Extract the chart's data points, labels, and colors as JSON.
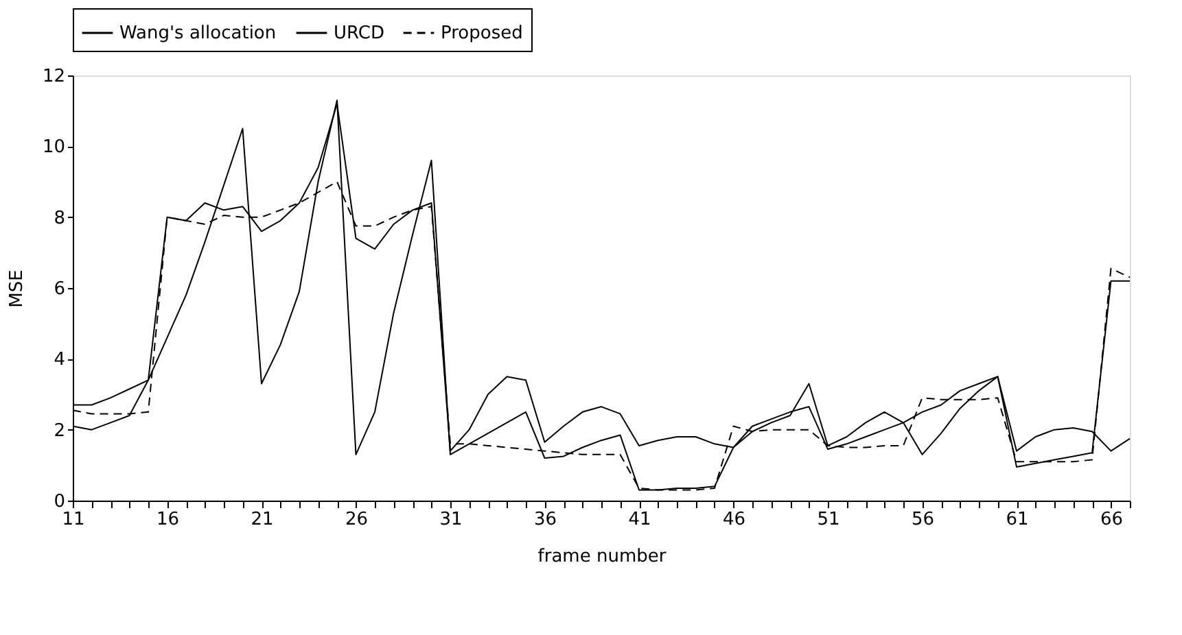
{
  "chart_data": {
    "type": "line",
    "xlabel": "frame number",
    "ylabel": "MSE",
    "x": [
      11,
      12,
      13,
      14,
      15,
      16,
      17,
      18,
      19,
      20,
      21,
      22,
      23,
      24,
      25,
      26,
      27,
      28,
      29,
      30,
      31,
      32,
      33,
      34,
      35,
      36,
      37,
      38,
      39,
      40,
      41,
      42,
      43,
      44,
      45,
      46,
      47,
      48,
      49,
      50,
      51,
      52,
      53,
      54,
      55,
      56,
      57,
      58,
      59,
      60,
      61,
      62,
      63,
      64,
      65,
      66,
      67
    ],
    "series": [
      {
        "name": "Wang's allocation",
        "color": "#000000",
        "line_style": "solid",
        "values": [
          2.1,
          2.0,
          2.2,
          2.4,
          3.4,
          4.6,
          5.8,
          7.3,
          8.9,
          10.5,
          3.3,
          4.4,
          5.9,
          9.0,
          11.3,
          1.3,
          2.5,
          5.3,
          7.5,
          9.6,
          1.3,
          1.6,
          1.9,
          2.2,
          2.5,
          1.2,
          1.25,
          1.5,
          1.7,
          1.85,
          0.3,
          0.3,
          0.35,
          0.35,
          0.4,
          1.5,
          2.1,
          2.3,
          2.5,
          2.65,
          1.45,
          1.6,
          1.8,
          2.0,
          2.2,
          2.5,
          2.7,
          3.1,
          3.3,
          3.5,
          0.95,
          1.05,
          1.15,
          1.25,
          1.35,
          6.2,
          6.2
        ]
      },
      {
        "name": "URCD",
        "color": "#000000",
        "line_style": "solid",
        "values": [
          2.7,
          2.7,
          2.9,
          3.15,
          3.4,
          8.0,
          7.9,
          8.4,
          8.2,
          8.3,
          7.6,
          7.9,
          8.4,
          9.4,
          11.2,
          7.4,
          7.1,
          7.8,
          8.2,
          8.4,
          1.4,
          2.0,
          3.0,
          3.5,
          3.4,
          1.65,
          2.1,
          2.5,
          2.65,
          2.45,
          1.55,
          1.7,
          1.8,
          1.8,
          1.6,
          1.5,
          1.95,
          2.2,
          2.4,
          3.3,
          1.55,
          1.8,
          2.2,
          2.5,
          2.2,
          1.3,
          1.9,
          2.6,
          3.1,
          3.5,
          1.4,
          1.8,
          2.0,
          2.05,
          1.95,
          1.4,
          1.75
        ]
      },
      {
        "name": "Proposed",
        "color": "#000000",
        "line_style": "dashed",
        "values": [
          2.55,
          2.45,
          2.45,
          2.45,
          2.5,
          8.0,
          7.9,
          7.8,
          8.05,
          8.0,
          8.0,
          8.2,
          8.4,
          8.7,
          9.0,
          7.75,
          7.75,
          8.0,
          8.2,
          8.3,
          1.6,
          1.6,
          1.55,
          1.5,
          1.45,
          1.4,
          1.35,
          1.3,
          1.3,
          1.3,
          0.35,
          0.3,
          0.3,
          0.3,
          0.35,
          2.1,
          1.95,
          2.0,
          2.0,
          2.0,
          1.55,
          1.5,
          1.5,
          1.55,
          1.55,
          2.9,
          2.85,
          2.85,
          2.85,
          2.9,
          1.1,
          1.1,
          1.1,
          1.1,
          1.15,
          6.55,
          6.3
        ]
      }
    ],
    "xlim": [
      11,
      67
    ],
    "xticks": [
      11,
      {
        "value": 12,
        "label": null
      },
      {
        "value": 13,
        "label": null
      },
      {
        "value": 14,
        "label": null
      },
      {
        "value": 15,
        "label": null
      },
      16,
      {
        "value": 17,
        "label": null
      },
      {
        "value": 18,
        "label": null
      },
      {
        "value": 19,
        "label": null
      },
      {
        "value": 20,
        "label": null
      },
      21,
      {
        "value": 22,
        "label": null
      },
      {
        "value": 23,
        "label": null
      },
      {
        "value": 24,
        "label": null
      },
      {
        "value": 25,
        "label": null
      },
      26,
      {
        "value": 27,
        "label": null
      },
      {
        "value": 28,
        "label": null
      },
      {
        "value": 29,
        "label": null
      },
      {
        "value": 30,
        "label": null
      },
      31,
      {
        "value": 32,
        "label": null
      },
      {
        "value": 33,
        "label": null
      },
      {
        "value": 34,
        "label": null
      },
      {
        "value": 35,
        "label": null
      },
      36,
      {
        "value": 37,
        "label": null
      },
      {
        "value": 38,
        "label": null
      },
      {
        "value": 39,
        "label": null
      },
      {
        "value": 40,
        "label": null
      },
      41,
      {
        "value": 42,
        "label": null
      },
      {
        "value": 43,
        "label": null
      },
      {
        "value": 44,
        "label": null
      },
      {
        "value": 45,
        "label": null
      },
      46,
      {
        "value": 47,
        "label": null
      },
      {
        "value": 48,
        "label": null
      },
      {
        "value": 49,
        "label": null
      },
      {
        "value": 50,
        "label": null
      },
      51,
      {
        "value": 52,
        "label": null
      },
      {
        "value": 53,
        "label": null
      },
      {
        "value": 54,
        "label": null
      },
      {
        "value": 55,
        "label": null
      },
      56,
      {
        "value": 57,
        "label": null
      },
      {
        "value": 58,
        "label": null
      },
      {
        "value": 59,
        "label": null
      },
      {
        "value": 60,
        "label": null
      },
      61,
      {
        "value": 62,
        "label": null
      },
      {
        "value": 63,
        "label": null
      },
      {
        "value": 64,
        "label": null
      },
      {
        "value": 65,
        "label": null
      },
      66,
      {
        "value": 67,
        "label": null
      }
    ],
    "ylim": [
      0,
      12
    ],
    "yticks": [
      0,
      2,
      4,
      6,
      8,
      10,
      12
    ],
    "grid": false,
    "legend": "top",
    "marker": "none"
  }
}
